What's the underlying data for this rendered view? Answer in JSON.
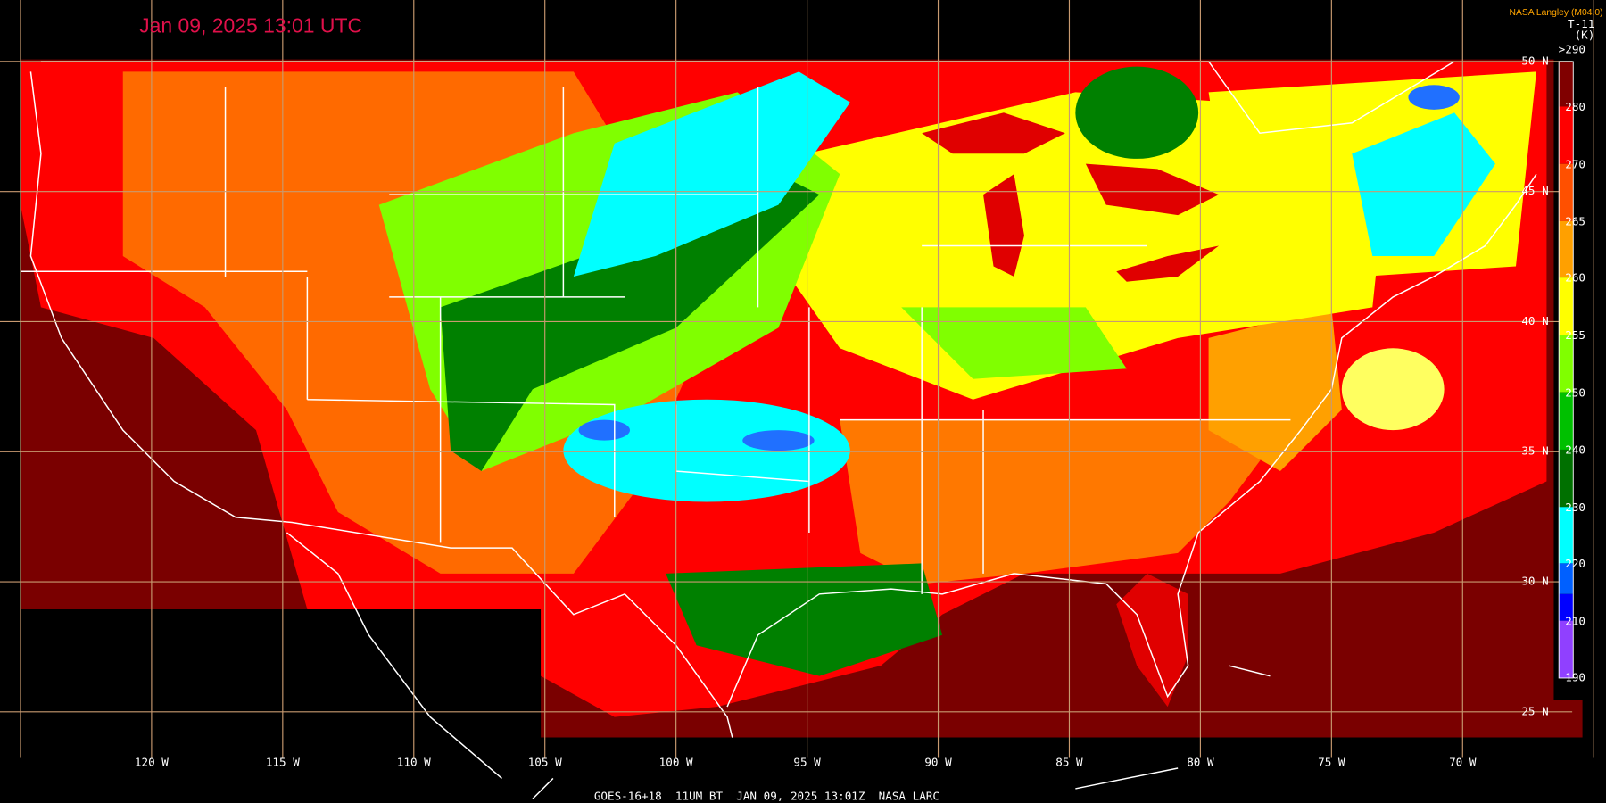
{
  "header": {
    "title": "Jan 09, 2025 13:01 UTC",
    "credit": "NASA Langley (M04.0)"
  },
  "legend": {
    "channel": "T-11",
    "unit": "(K)",
    "labels": [
      ">290",
      "280",
      "270",
      "265",
      "260",
      "255",
      "250",
      "240",
      "230",
      "220",
      "210",
      "190"
    ]
  },
  "map": {
    "latitude_labels": [
      "50 N",
      "45 N",
      "40 N",
      "35 N",
      "30 N",
      "25 N"
    ],
    "longitude_labels": [
      "120 W",
      "115 W",
      "110 W",
      "105 W",
      "100 W",
      "95 W",
      "90 W",
      "85 W",
      "80 W",
      "75 W",
      "70 W"
    ]
  },
  "footer": "GOES-16+18  11UM BT  JAN 09, 2025 13:01Z  NASA LARC"
}
